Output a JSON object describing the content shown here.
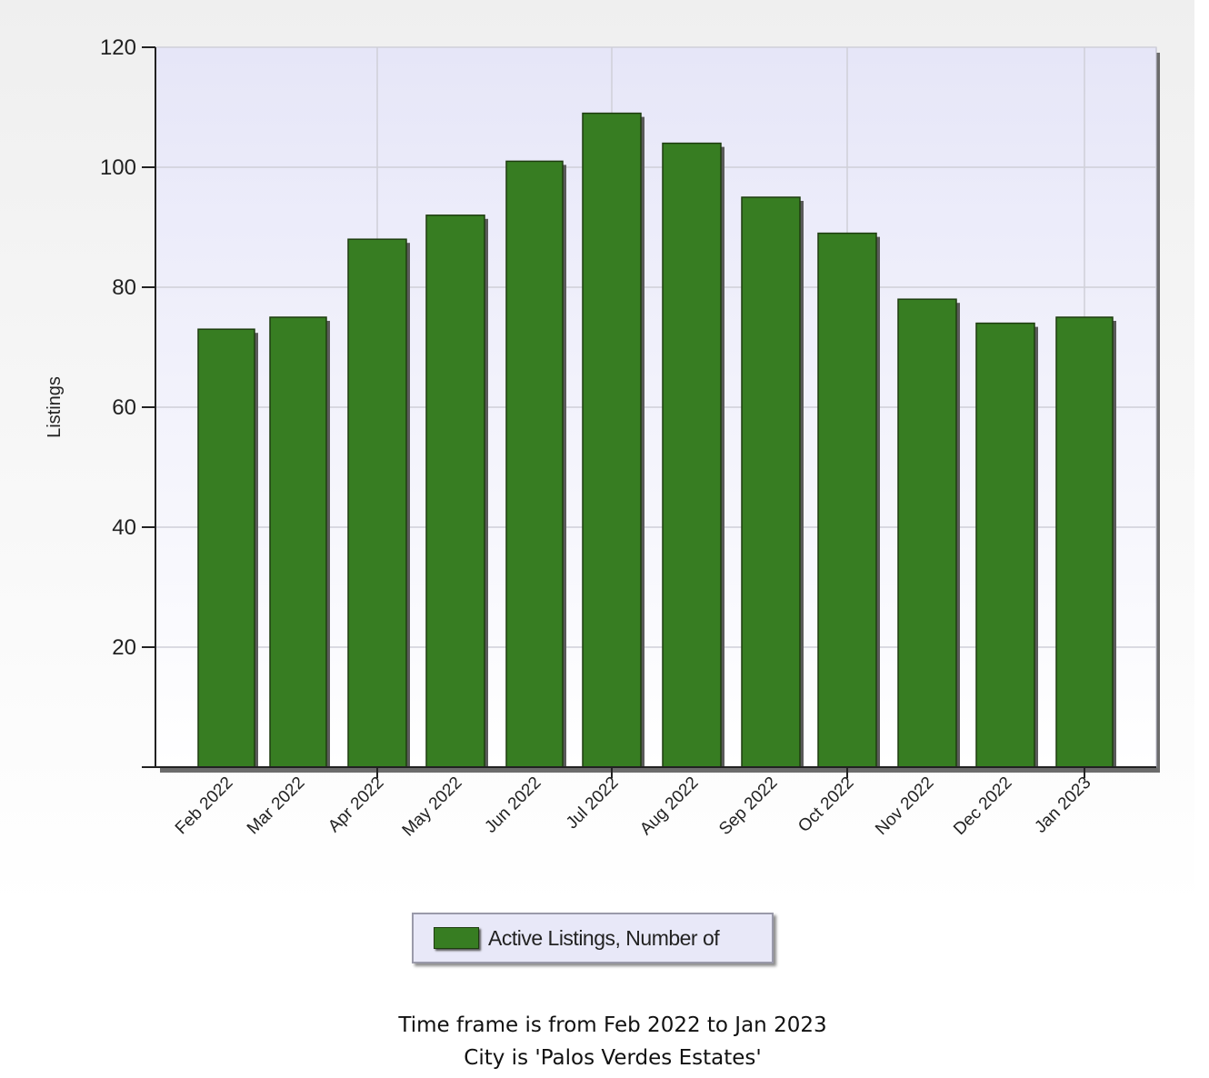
{
  "chart_data": {
    "type": "bar",
    "title": "",
    "xlabel": "",
    "ylabel": "Listings",
    "ylim": [
      0,
      120
    ],
    "yticks": [
      20,
      40,
      60,
      80,
      100,
      120
    ],
    "grid": true,
    "categories": [
      "Feb 2022",
      "Mar 2022",
      "Apr 2022",
      "May 2022",
      "Jun 2022",
      "Jul 2022",
      "Aug 2022",
      "Sep 2022",
      "Oct 2022",
      "Nov 2022",
      "Dec 2022",
      "Jan 2023"
    ],
    "series": [
      {
        "name": "Active Listings, Number of",
        "values": [
          73,
          75,
          88,
          92,
          101,
          109,
          104,
          95,
          89,
          78,
          74,
          75
        ],
        "color": "#377d22"
      }
    ],
    "legend_position": "bottom"
  },
  "colors": {
    "bar": "#377d22",
    "bar_edge": "#1e3d10",
    "plot_background_top": "#e6e6f8",
    "plot_background_bottom": "#ffffff",
    "gridline": "#cfcfd8"
  },
  "footer": {
    "line1": "Time frame is from Feb 2022 to Jan 2023",
    "line2": "City is 'Palos Verdes Estates'"
  }
}
